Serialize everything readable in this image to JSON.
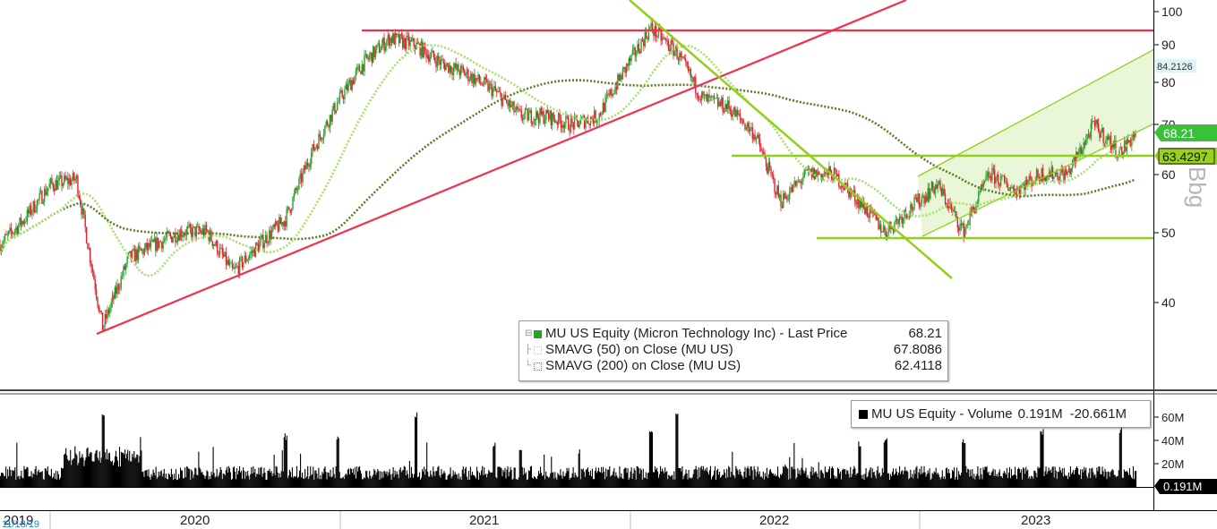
{
  "price_axis": {
    "ticks": [
      "100",
      "90",
      "80",
      "70",
      "60",
      "50",
      "40"
    ],
    "label": "Bbg"
  },
  "volume_axis": {
    "ticks": [
      "60M",
      "40M",
      "20M"
    ]
  },
  "x_axis": {
    "labels": [
      "2019",
      "2020",
      "2021",
      "2022",
      "2023"
    ],
    "start_tag": "11/18/19"
  },
  "tags": {
    "upper_channel": "84.2126",
    "last_price": "68.21",
    "sma200": "63.4297",
    "volume": "0.191M"
  },
  "legend": {
    "price_rows": [
      {
        "name": "MU US Equity (Micron Technology Inc) - Last Price",
        "value": "68.21"
      },
      {
        "name": "SMAVG (50)  on Close (MU US)",
        "value": "67.8086"
      },
      {
        "name": "SMAVG (200)  on Close (MU US)",
        "value": "62.4118"
      }
    ],
    "volume_row": {
      "name": "MU US Equity - Volume",
      "value": "0.191M",
      "change": "-20.661M"
    }
  },
  "colors": {
    "up": "#2ca02c",
    "down": "#e0202f",
    "sma50": "#a8df6a",
    "sma200": "#5d7a24",
    "trendline_red": "#f0304e",
    "trendline_green": "#8fd11a",
    "channel_fill": "#eaf6d8",
    "last_price_tag": "#3ac13a",
    "sma200_tag": "#9ad21a"
  },
  "chart_data": {
    "type": "candlestick",
    "symbol": "MU US Equity",
    "date_range": [
      "2019-11-18",
      "2023-07"
    ],
    "price_scale": "log",
    "price_ylim": [
      33,
      102
    ],
    "last_price": 68.21,
    "series": [
      {
        "name": "MU US Equity (Micron Technology Inc) - Last Price",
        "value": 68.21,
        "approx_path": [
          [
            "2019-11",
            48
          ],
          [
            "2019-12",
            52
          ],
          [
            "2020-01",
            58
          ],
          [
            "2020-02",
            59
          ],
          [
            "2020-03",
            37
          ],
          [
            "2020-04",
            46
          ],
          [
            "2020-05",
            48
          ],
          [
            "2020-06",
            50
          ],
          [
            "2020-07",
            50
          ],
          [
            "2020-08",
            44
          ],
          [
            "2020-09",
            48
          ],
          [
            "2020-10",
            52
          ],
          [
            "2020-11",
            64
          ],
          [
            "2020-12",
            75
          ],
          [
            "2021-01",
            85
          ],
          [
            "2021-02",
            92
          ],
          [
            "2021-03",
            90
          ],
          [
            "2021-04",
            85
          ],
          [
            "2021-05",
            82
          ],
          [
            "2021-06",
            78
          ],
          [
            "2021-07",
            72
          ],
          [
            "2021-08",
            72
          ],
          [
            "2021-09",
            70
          ],
          [
            "2021-10",
            72
          ],
          [
            "2021-11",
            83
          ],
          [
            "2021-12",
            95
          ],
          [
            "2022-01",
            88
          ],
          [
            "2022-02",
            76
          ],
          [
            "2022-03",
            74
          ],
          [
            "2022-04",
            68
          ],
          [
            "2022-05",
            55
          ],
          [
            "2022-06",
            60
          ],
          [
            "2022-07",
            60
          ],
          [
            "2022-08",
            55
          ],
          [
            "2022-09",
            50
          ],
          [
            "2022-10",
            54
          ],
          [
            "2022-11",
            58
          ],
          [
            "2022-12",
            50
          ],
          [
            "2023-01",
            60
          ],
          [
            "2023-02",
            57
          ],
          [
            "2023-03",
            60
          ],
          [
            "2023-04",
            60
          ],
          [
            "2023-05",
            70
          ],
          [
            "2023-06",
            64
          ],
          [
            "2023-07",
            68.21
          ]
        ]
      },
      {
        "name": "SMAVG (50)  on Close (MU US)",
        "value": 67.8086
      },
      {
        "name": "SMAVG (200)  on Close (MU US)",
        "value": 62.4118
      }
    ],
    "annotations": {
      "horizontal_lines": [
        95,
        63.4297,
        49
      ],
      "upper_channel_value": 84.2126
    },
    "volume": {
      "last": "0.191M",
      "change": "-20.661M",
      "ylim_M": [
        0,
        75
      ],
      "spikes_M": [
        [
          "2020-03",
          63
        ],
        [
          "2020-10",
          47
        ],
        [
          "2020-12",
          45
        ],
        [
          "2021-03",
          70
        ],
        [
          "2021-06",
          38
        ],
        [
          "2021-07",
          35
        ],
        [
          "2021-12",
          52
        ],
        [
          "2022-01",
          68
        ],
        [
          "2022-08",
          40
        ],
        [
          "2022-09",
          45
        ],
        [
          "2022-12",
          42
        ],
        [
          "2023-03",
          50
        ],
        [
          "2023-06",
          52
        ]
      ]
    }
  }
}
